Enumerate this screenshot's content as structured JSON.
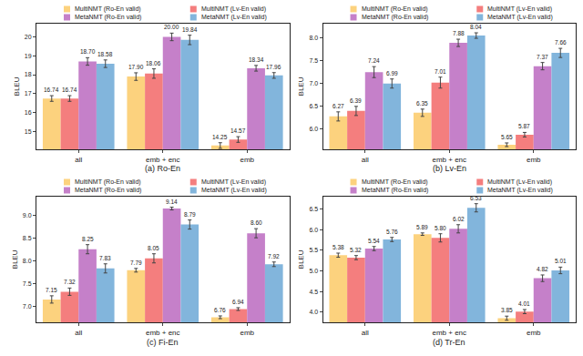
{
  "chart_data": [
    {
      "type": "bar",
      "title": "(a) Ro-En",
      "y_label": "BLEU",
      "categories": [
        "all",
        "emb + enc",
        "emb"
      ],
      "ylim": [
        14.05,
        20.7
      ],
      "yticks": [
        15,
        16,
        17,
        18,
        19,
        20
      ],
      "grid": false,
      "data_labels": true,
      "legend": "top",
      "series": [
        {
          "name": "MultiNMT (Ro-En valid)",
          "color": "#fcd27e",
          "values": [
            16.74,
            17.9,
            14.25
          ],
          "value_labels": [
            "16.74",
            "17.90",
            "14.25"
          ],
          "errors": [
            0.15,
            0.2,
            0.15
          ]
        },
        {
          "name": "MultiNMT (Lv-En valid)",
          "color": "#f47e7e",
          "values": [
            16.74,
            18.06,
            14.57
          ],
          "value_labels": [
            "16.74",
            "18.06",
            "14.57"
          ],
          "errors": [
            0.15,
            0.25,
            0.15
          ]
        },
        {
          "name": "MetaNMT (Ro-En valid)",
          "color": "#c580c9",
          "values": [
            18.7,
            20.0,
            18.34
          ],
          "value_labels": [
            "18.70",
            "20.00",
            "18.34"
          ],
          "errors": [
            0.2,
            0.2,
            0.15
          ]
        },
        {
          "name": "MetaNMT (Lv-En valid)",
          "color": "#82b5dc",
          "values": [
            18.58,
            19.84,
            17.96
          ],
          "value_labels": [
            "18.58",
            "19.84",
            "17.96"
          ],
          "errors": [
            0.2,
            0.25,
            0.15
          ]
        }
      ]
    },
    {
      "type": "bar",
      "title": "(b) Lv-En",
      "y_label": "BLEU",
      "categories": [
        "all",
        "emb + enc",
        "emb"
      ],
      "ylim": [
        5.55,
        8.3
      ],
      "yticks": [
        {
          "value": 6,
          "label": "6.0"
        },
        6.5,
        {
          "value": 7,
          "label": "7.0"
        },
        7.5,
        {
          "value": 8,
          "label": "8.0"
        }
      ],
      "grid": false,
      "data_labels": true,
      "legend": "top",
      "series": [
        {
          "name": "MultiNMT (Ro-En valid)",
          "color": "#fcd27e",
          "values": [
            6.27,
            6.35,
            5.65
          ],
          "value_labels": [
            "6.27",
            "6.35",
            "5.65"
          ],
          "errors": [
            0.1,
            0.08,
            0.04
          ]
        },
        {
          "name": "MultiNMT (Lv-En valid)",
          "color": "#f47e7e",
          "values": [
            6.39,
            7.01,
            5.87
          ],
          "value_labels": [
            "6.39",
            "7.01",
            "5.87"
          ],
          "errors": [
            0.1,
            0.12,
            0.05
          ]
        },
        {
          "name": "MetaNMT (Ro-En valid)",
          "color": "#c580c9",
          "values": [
            7.24,
            7.88,
            7.37
          ],
          "value_labels": [
            "7.24",
            "7.88",
            "7.37"
          ],
          "errors": [
            0.12,
            0.08,
            0.08
          ]
        },
        {
          "name": "MetaNMT (Lv-En valid)",
          "color": "#82b5dc",
          "values": [
            6.99,
            8.04,
            7.66
          ],
          "value_labels": [
            "6.99",
            "8.04",
            "7.66"
          ],
          "errors": [
            0.1,
            0.06,
            0.1
          ]
        }
      ]
    },
    {
      "type": "bar",
      "title": "(c) Fi-En",
      "y_label": "BLEU",
      "categories": [
        "all",
        "emb + enc",
        "emb"
      ],
      "ylim": [
        6.65,
        9.4
      ],
      "yticks": [
        {
          "value": 7,
          "label": "7.0"
        },
        7.5,
        {
          "value": 8,
          "label": "8.0"
        },
        8.5,
        {
          "value": 9,
          "label": "9.0"
        }
      ],
      "grid": false,
      "data_labels": true,
      "legend": "top",
      "series": [
        {
          "name": "MultiNMT (Ro-En valid)",
          "color": "#fcd27e",
          "values": [
            7.15,
            7.79,
            6.76
          ],
          "value_labels": [
            "7.15",
            "7.79",
            "6.76"
          ],
          "errors": [
            0.08,
            0.04,
            0.03
          ]
        },
        {
          "name": "MultiNMT (Lv-En valid)",
          "color": "#f47e7e",
          "values": [
            7.32,
            8.05,
            6.94
          ],
          "value_labels": [
            "7.32",
            "8.05",
            "6.94"
          ],
          "errors": [
            0.08,
            0.1,
            0.03
          ]
        },
        {
          "name": "MetaNMT (Ro-En valid)",
          "color": "#c580c9",
          "values": [
            8.25,
            9.14,
            8.6
          ],
          "value_labels": [
            "8.25",
            "9.14",
            "8.60"
          ],
          "errors": [
            0.1,
            0.03,
            0.1
          ]
        },
        {
          "name": "MetaNMT (Lv-En valid)",
          "color": "#82b5dc",
          "values": [
            7.83,
            8.79,
            7.92
          ],
          "value_labels": [
            "7.83",
            "8.79",
            "7.92"
          ],
          "errors": [
            0.1,
            0.1,
            0.05
          ]
        }
      ]
    },
    {
      "type": "bar",
      "title": "(d) Tr-En",
      "y_label": "BLEU",
      "categories": [
        "all",
        "emb + enc",
        "emb"
      ],
      "ylim": [
        3.75,
        6.8
      ],
      "yticks": [
        {
          "value": 4,
          "label": "4.0"
        },
        4.5,
        {
          "value": 5,
          "label": "5.0"
        },
        5.5,
        {
          "value": 6,
          "label": "6.0"
        },
        6.5
      ],
      "grid": false,
      "data_labels": true,
      "legend": "top",
      "series": [
        {
          "name": "MultiNMT (Ro-En valid)",
          "color": "#fcd27e",
          "values": [
            5.38,
            5.89,
            3.85
          ],
          "value_labels": [
            "5.38",
            "5.89",
            "3.85"
          ],
          "errors": [
            0.05,
            0.03,
            0.05
          ]
        },
        {
          "name": "MultiNMT (Lv-En valid)",
          "color": "#f47e7e",
          "values": [
            5.32,
            5.8,
            4.01
          ],
          "value_labels": [
            "5.32",
            "5.80",
            "4.01"
          ],
          "errors": [
            0.05,
            0.1,
            0.05
          ]
        },
        {
          "name": "MetaNMT (Ro-En valid)",
          "color": "#c580c9",
          "values": [
            5.54,
            6.02,
            4.82
          ],
          "value_labels": [
            "5.54",
            "6.02",
            "4.82"
          ],
          "errors": [
            0.05,
            0.1,
            0.08
          ]
        },
        {
          "name": "MetaNMT (Lv-En valid)",
          "color": "#82b5dc",
          "values": [
            5.76,
            6.53,
            5.01
          ],
          "value_labels": [
            "5.76",
            "6.53",
            "5.01"
          ],
          "errors": [
            0.05,
            0.1,
            0.08
          ]
        }
      ]
    }
  ]
}
